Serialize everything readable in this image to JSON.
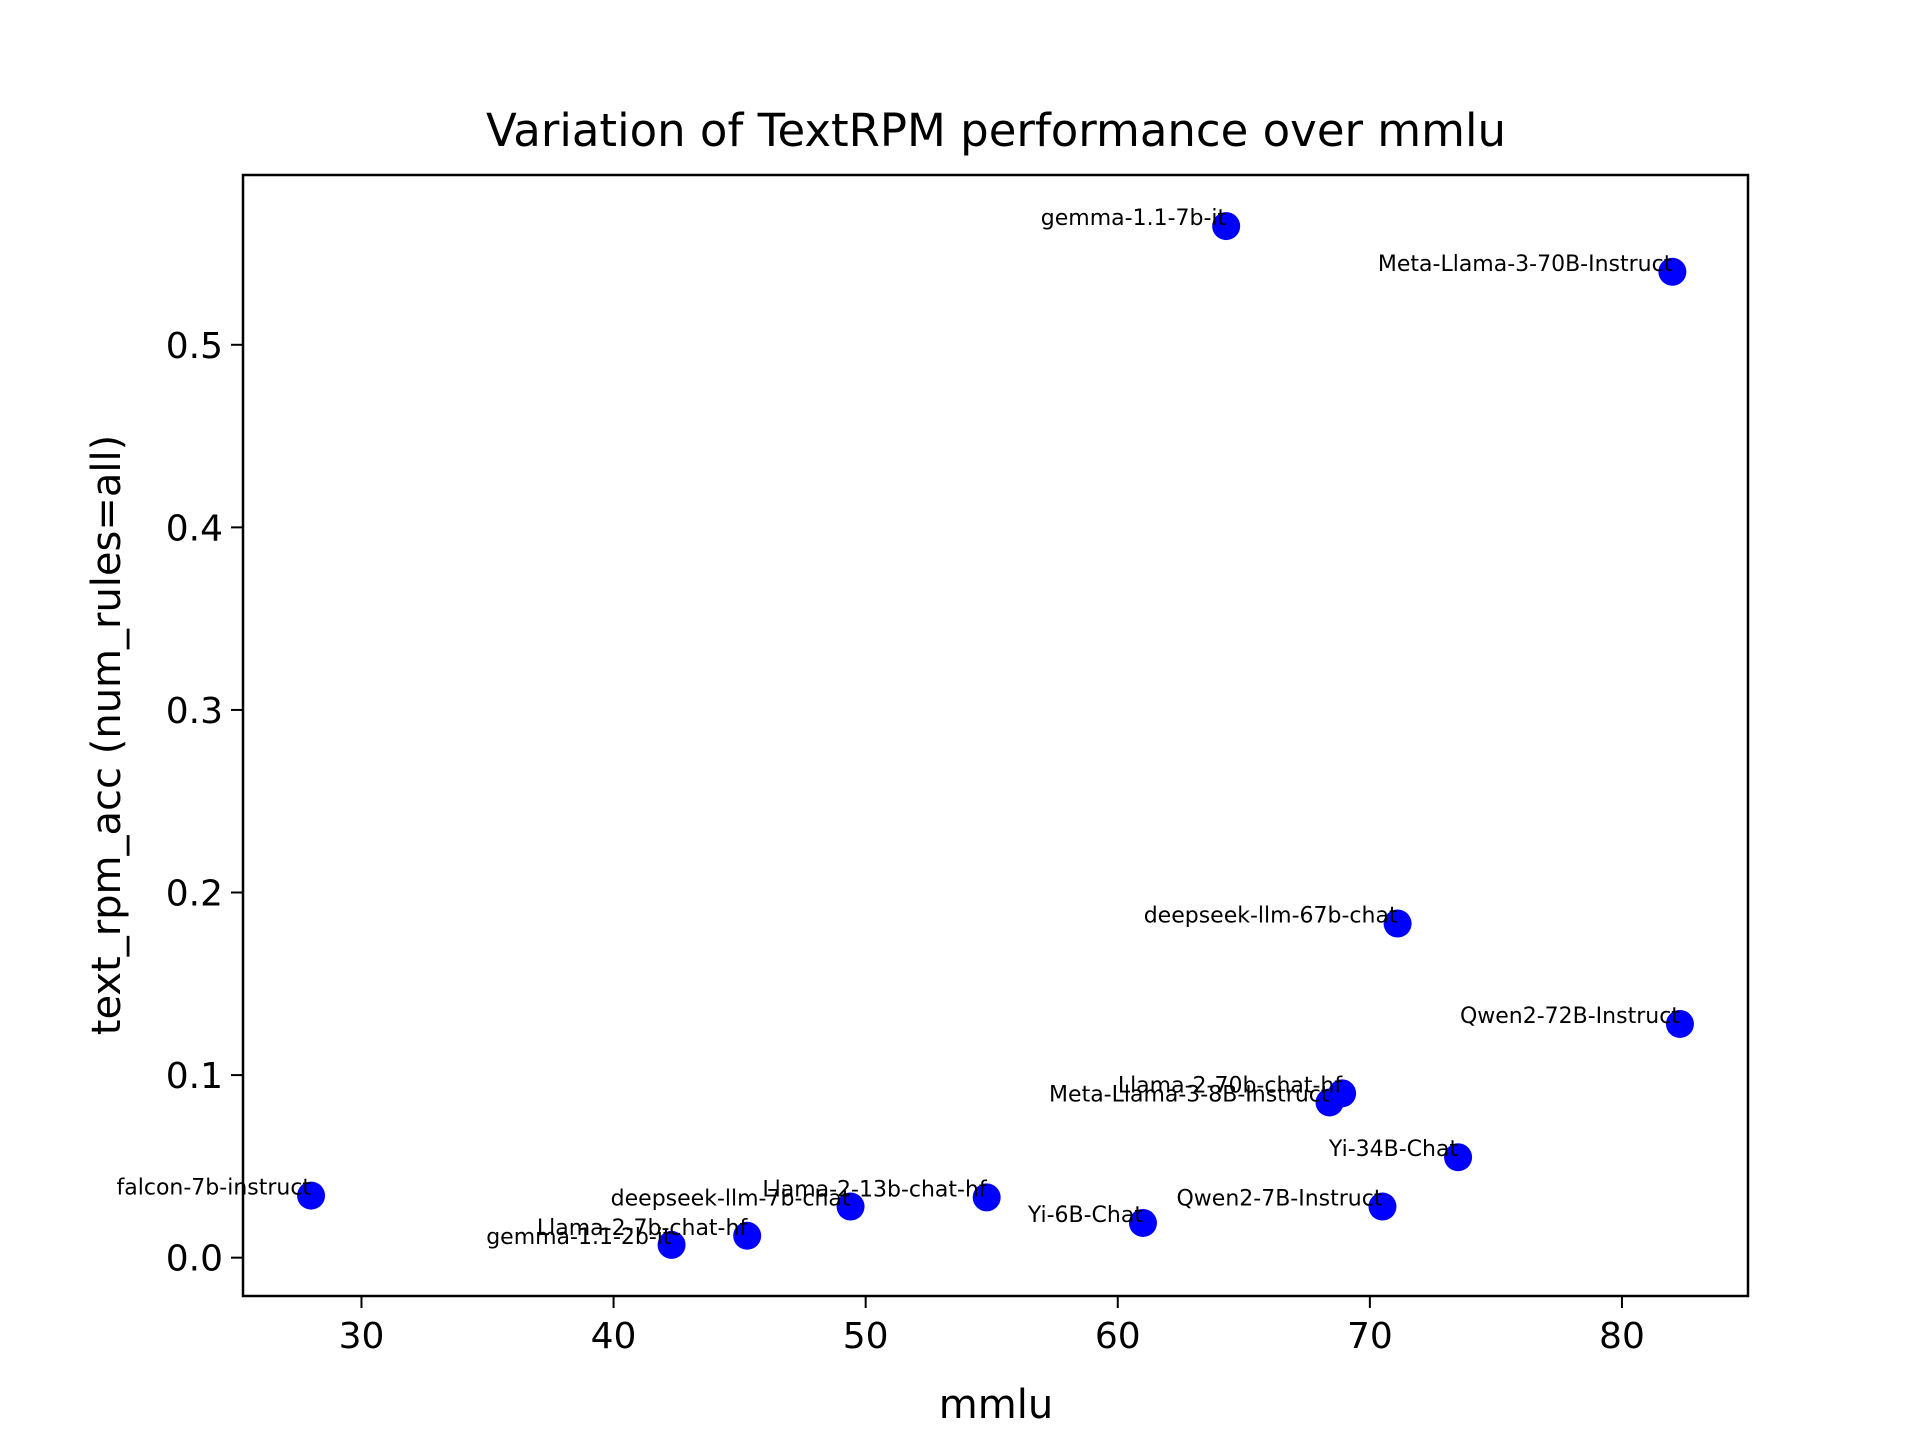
{
  "chart_data": {
    "type": "scatter",
    "title": "Variation of TextRPM performance over mmlu",
    "xlabel": "mmlu",
    "ylabel": "text_rpm_acc (num_rules=all)",
    "xlim": [
      25.3,
      85.0
    ],
    "ylim": [
      -0.021,
      0.593
    ],
    "xticks": [
      30,
      40,
      50,
      60,
      70,
      80
    ],
    "yticks": [
      0.0,
      0.1,
      0.2,
      0.3,
      0.4,
      0.5
    ],
    "ytick_labels": [
      "0.0",
      "0.1",
      "0.2",
      "0.3",
      "0.4",
      "0.5"
    ],
    "grid": false,
    "point_color": "#0000ff",
    "points": [
      {
        "label": "gemma-1.1-7b-it",
        "x": 64.3,
        "y": 0.565
      },
      {
        "label": "Meta-Llama-3-70B-Instruct",
        "x": 82.0,
        "y": 0.54
      },
      {
        "label": "deepseek-llm-67b-chat",
        "x": 71.1,
        "y": 0.183
      },
      {
        "label": "Qwen2-72B-Instruct",
        "x": 82.3,
        "y": 0.128
      },
      {
        "label": "Llama-2-70b-chat-hf",
        "x": 68.9,
        "y": 0.09
      },
      {
        "label": "Meta-Llama-3-8B-Instruct",
        "x": 68.4,
        "y": 0.085
      },
      {
        "label": "Yi-34B-Chat",
        "x": 73.5,
        "y": 0.055
      },
      {
        "label": "falcon-7b-instruct",
        "x": 28.0,
        "y": 0.034
      },
      {
        "label": "Llama-2-13b-chat-hf",
        "x": 54.8,
        "y": 0.033
      },
      {
        "label": "deepseek-llm-7b-chat",
        "x": 49.4,
        "y": 0.028
      },
      {
        "label": "Qwen2-7B-Instruct",
        "x": 70.5,
        "y": 0.028
      },
      {
        "label": "Yi-6B-Chat",
        "x": 61.0,
        "y": 0.019
      },
      {
        "label": "Llama-2-7b-chat-hf",
        "x": 45.3,
        "y": 0.012
      },
      {
        "label": "gemma-1.1-2b-it",
        "x": 42.3,
        "y": 0.007
      }
    ]
  }
}
